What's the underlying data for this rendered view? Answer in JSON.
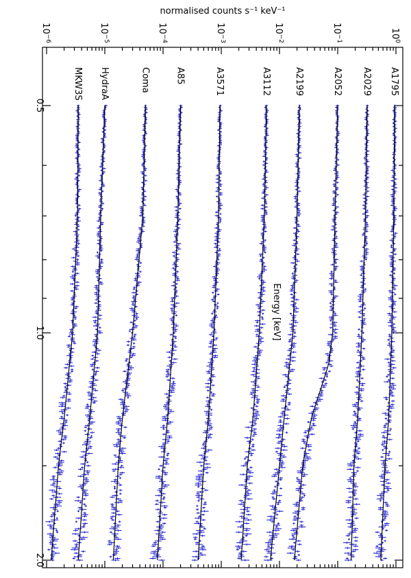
{
  "chart_data": {
    "type": "line",
    "orientation": "rotated-90-clockwise",
    "xlabel": "Energy [keV]",
    "ylabel": "normalised counts s⁻¹ keV⁻¹",
    "x_scale": "log",
    "y_scale": "log",
    "xlim": [
      0.4,
      2.05
    ],
    "ylim": [
      6e-07,
      1.2
    ],
    "x_ticks": [
      {
        "value": 0.5,
        "label": "0.5"
      },
      {
        "value": 1.0,
        "label": "1.0"
      },
      {
        "value": 2.0,
        "label": "2.0"
      }
    ],
    "x_minor_ticks": [
      0.6,
      0.7,
      0.8,
      0.9,
      1.5
    ],
    "y_ticks": [
      {
        "value": 1e-06,
        "base": "10",
        "exp": "−6"
      },
      {
        "value": 1e-05,
        "base": "10",
        "exp": "−5"
      },
      {
        "value": 0.0001,
        "base": "10",
        "exp": "−4"
      },
      {
        "value": 0.001,
        "base": "10",
        "exp": "−3"
      },
      {
        "value": 0.01,
        "base": "10",
        "exp": "−2"
      },
      {
        "value": 0.1,
        "base": "10",
        "exp": "−1"
      },
      {
        "value": 1,
        "base": "10",
        "exp": "0"
      }
    ],
    "colors": {
      "data": "#1f1fd0",
      "model": "#000000"
    },
    "series": [
      {
        "name": "A1795",
        "points": [
          [
            0.5,
            0.95
          ],
          [
            0.7,
            0.92
          ],
          [
            1.0,
            0.85
          ],
          [
            1.3,
            0.75
          ],
          [
            1.5,
            0.65
          ],
          [
            2.0,
            0.55
          ]
        ]
      },
      {
        "name": "A2029",
        "points": [
          [
            0.5,
            0.32
          ],
          [
            0.7,
            0.3
          ],
          [
            1.0,
            0.26
          ],
          [
            1.3,
            0.22
          ],
          [
            1.5,
            0.19
          ],
          [
            2.0,
            0.17
          ]
        ]
      },
      {
        "name": "A2052",
        "points": [
          [
            0.5,
            0.1
          ],
          [
            0.7,
            0.09
          ],
          [
            1.0,
            0.082
          ],
          [
            1.1,
            0.07
          ],
          [
            1.3,
            0.035
          ],
          [
            1.5,
            0.025
          ],
          [
            2.0,
            0.018
          ]
        ]
      },
      {
        "name": "A2199",
        "points": [
          [
            0.5,
            0.022
          ],
          [
            0.7,
            0.02
          ],
          [
            1.0,
            0.017
          ],
          [
            1.3,
            0.012
          ],
          [
            1.5,
            0.01
          ],
          [
            2.0,
            0.007
          ]
        ]
      },
      {
        "name": "A3112",
        "points": [
          [
            0.5,
            0.006
          ],
          [
            0.7,
            0.0055
          ],
          [
            1.0,
            0.0045
          ],
          [
            1.3,
            0.0035
          ],
          [
            1.5,
            0.0028
          ],
          [
            2.0,
            0.0022
          ]
        ]
      },
      {
        "name": "A3571",
        "points": [
          [
            0.5,
            0.00095
          ],
          [
            0.7,
            0.0009
          ],
          [
            1.0,
            0.00075
          ],
          [
            1.3,
            0.0006
          ],
          [
            1.5,
            0.0005
          ],
          [
            2.0,
            0.0004
          ]
        ]
      },
      {
        "name": "A85",
        "points": [
          [
            0.5,
            0.0002
          ],
          [
            0.7,
            0.00018
          ],
          [
            1.0,
            0.00015
          ],
          [
            1.3,
            0.00012
          ],
          [
            1.5,
            0.0001
          ],
          [
            2.0,
            8e-05
          ]
        ]
      },
      {
        "name": "Coma",
        "points": [
          [
            0.5,
            5e-05
          ],
          [
            0.7,
            4.5e-05
          ],
          [
            1.0,
            3e-05
          ],
          [
            1.3,
            2e-05
          ],
          [
            1.5,
            1.7e-05
          ],
          [
            2.0,
            1.4e-05
          ]
        ]
      },
      {
        "name": "HydraA",
        "points": [
          [
            0.5,
            1e-05
          ],
          [
            0.7,
            8.5e-06
          ],
          [
            1.0,
            7.5e-06
          ],
          [
            1.3,
            5.5e-06
          ],
          [
            1.5,
            4.5e-06
          ],
          [
            2.0,
            3.5e-06
          ]
        ]
      },
      {
        "name": "MKW3S",
        "points": [
          [
            0.5,
            3.5e-06
          ],
          [
            0.7,
            3.4e-06
          ],
          [
            1.0,
            2.8e-06
          ],
          [
            1.3,
            2e-06
          ],
          [
            1.5,
            1.6e-06
          ],
          [
            2.0,
            1.2e-06
          ]
        ]
      }
    ]
  }
}
